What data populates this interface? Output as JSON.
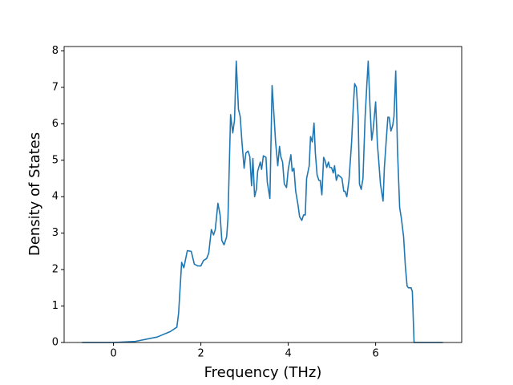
{
  "chart_data": {
    "type": "line",
    "x_label": "Frequency (THz)",
    "y_label": "Density of States",
    "x": [
      -0.72,
      0,
      0.5,
      1.0,
      1.3,
      1.45,
      1.49,
      1.52,
      1.56,
      1.61,
      1.69,
      1.78,
      1.85,
      1.93,
      2.0,
      2.06,
      2.13,
      2.18,
      2.24,
      2.29,
      2.33,
      2.39,
      2.44,
      2.48,
      2.53,
      2.59,
      2.62,
      2.68,
      2.73,
      2.77,
      2.81,
      2.86,
      2.9,
      2.94,
      2.99,
      3.03,
      3.08,
      3.12,
      3.16,
      3.19,
      3.23,
      3.27,
      3.3,
      3.36,
      3.39,
      3.43,
      3.49,
      3.52,
      3.58,
      3.63,
      3.67,
      3.71,
      3.76,
      3.8,
      3.83,
      3.87,
      3.91,
      3.96,
      4.0,
      4.06,
      4.09,
      4.13,
      4.17,
      4.22,
      4.26,
      4.31,
      4.35,
      4.39,
      4.42,
      4.48,
      4.51,
      4.55,
      4.59,
      4.62,
      4.66,
      4.7,
      4.73,
      4.77,
      4.81,
      4.84,
      4.88,
      4.92,
      4.95,
      4.99,
      5.03,
      5.06,
      5.1,
      5.14,
      5.19,
      5.23,
      5.27,
      5.3,
      5.34,
      5.39,
      5.45,
      5.49,
      5.52,
      5.56,
      5.6,
      5.63,
      5.67,
      5.71,
      5.76,
      5.8,
      5.83,
      5.87,
      5.91,
      5.94,
      6.0,
      6.04,
      6.07,
      6.11,
      6.17,
      6.2,
      6.24,
      6.28,
      6.31,
      6.35,
      6.39,
      6.42,
      6.46,
      6.5,
      6.55,
      6.59,
      6.64,
      6.68,
      6.72,
      6.75,
      6.81,
      6.84,
      6.88,
      7.54
    ],
    "series": [
      {
        "color": "#1f77b4",
        "values": [
          0,
          0,
          0.03,
          0.15,
          0.3,
          0.42,
          0.8,
          1.4,
          2.2,
          2.05,
          2.52,
          2.5,
          2.15,
          2.1,
          2.1,
          2.25,
          2.3,
          2.45,
          3.1,
          2.95,
          3.1,
          3.82,
          3.5,
          2.8,
          2.68,
          2.9,
          3.4,
          6.25,
          5.75,
          6.1,
          7.72,
          6.4,
          6.2,
          5.5,
          4.78,
          5.2,
          5.25,
          5.1,
          4.3,
          5.05,
          4.0,
          4.2,
          4.7,
          4.95,
          4.75,
          5.12,
          5.08,
          4.4,
          3.95,
          7.05,
          6.3,
          5.5,
          4.85,
          5.38,
          5.1,
          4.95,
          4.35,
          4.25,
          4.75,
          5.15,
          4.7,
          4.78,
          4.15,
          3.8,
          3.45,
          3.35,
          3.5,
          3.5,
          4.5,
          4.85,
          5.65,
          5.5,
          6.02,
          5.2,
          4.6,
          4.45,
          4.45,
          4.05,
          5.08,
          5.0,
          4.8,
          4.95,
          4.8,
          4.8,
          4.65,
          4.85,
          4.45,
          4.6,
          4.55,
          4.5,
          4.15,
          4.15,
          4.0,
          4.45,
          5.5,
          6.5,
          7.1,
          7.0,
          6.2,
          4.35,
          4.2,
          4.5,
          6.2,
          7.1,
          7.72,
          6.5,
          5.55,
          5.8,
          6.6,
          5.45,
          5.0,
          4.35,
          3.88,
          4.8,
          5.5,
          6.18,
          6.18,
          5.8,
          5.95,
          6.2,
          7.45,
          5.3,
          3.7,
          3.4,
          2.9,
          2.1,
          1.55,
          1.5,
          1.5,
          1.4,
          0,
          0
        ]
      }
    ],
    "xlim": [
      -1.13,
      7.97
    ],
    "xticks": [
      0,
      2,
      4,
      6
    ],
    "ylim": [
      0,
      8.12
    ],
    "yticks": [
      0,
      1,
      2,
      3,
      4,
      5,
      6,
      7,
      8
    ]
  }
}
